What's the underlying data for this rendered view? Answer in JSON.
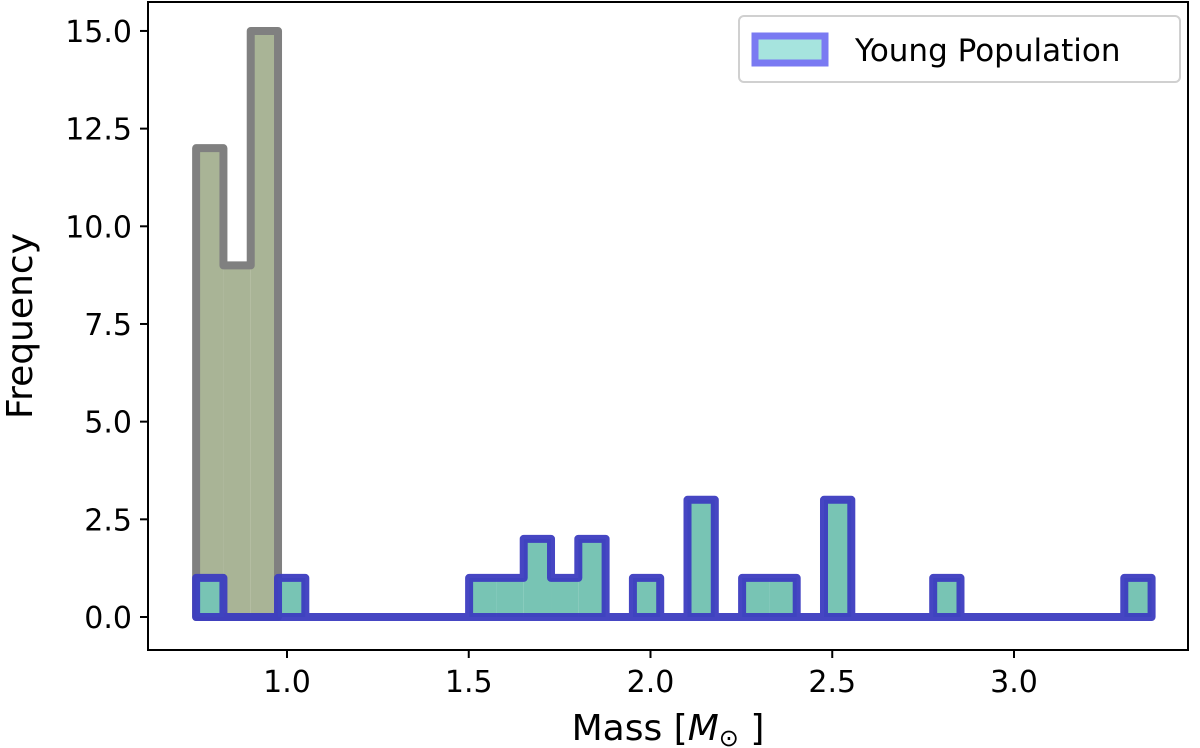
{
  "chart_data": {
    "type": "histogram",
    "title": "",
    "xlabel": "Mass [",
    "xlabel_symbol": "M",
    "xlabel_sub": "⊙",
    "xlabel_close": "]",
    "ylabel": "Frequency",
    "xlim": [
      0.62,
      3.5
    ],
    "ylim": [
      -0.75,
      15.75
    ],
    "xticks": [
      "1.0",
      "1.5",
      "2.0",
      "2.5",
      "3.0"
    ],
    "yticks": [
      "0.0",
      "2.5",
      "5.0",
      "7.5",
      "10.0",
      "12.5",
      "15.0"
    ],
    "grid": false,
    "legend_position": "top-right",
    "series": [
      {
        "bin_start": 0.75,
        "bin_width": 0.0751,
        "counts": [
          12,
          9,
          15
        ],
        "stroke": "#808080",
        "fill": "#a9b496"
      },
      {
        "name": "Young Population",
        "bin_start": 0.75,
        "bin_width": 0.0751,
        "counts": [
          1,
          0,
          0,
          1,
          0,
          0,
          0,
          0,
          0,
          0,
          1,
          1,
          2,
          1,
          2,
          0,
          1,
          0,
          3,
          0,
          1,
          1,
          0,
          3,
          0,
          0,
          0,
          1,
          0,
          0,
          0,
          0,
          0,
          0,
          1
        ],
        "stroke": "#3c3cc0",
        "fill": "#78c4b4",
        "legend_fill": "#a6e4de",
        "legend_stroke": "#7a7af2"
      }
    ]
  }
}
